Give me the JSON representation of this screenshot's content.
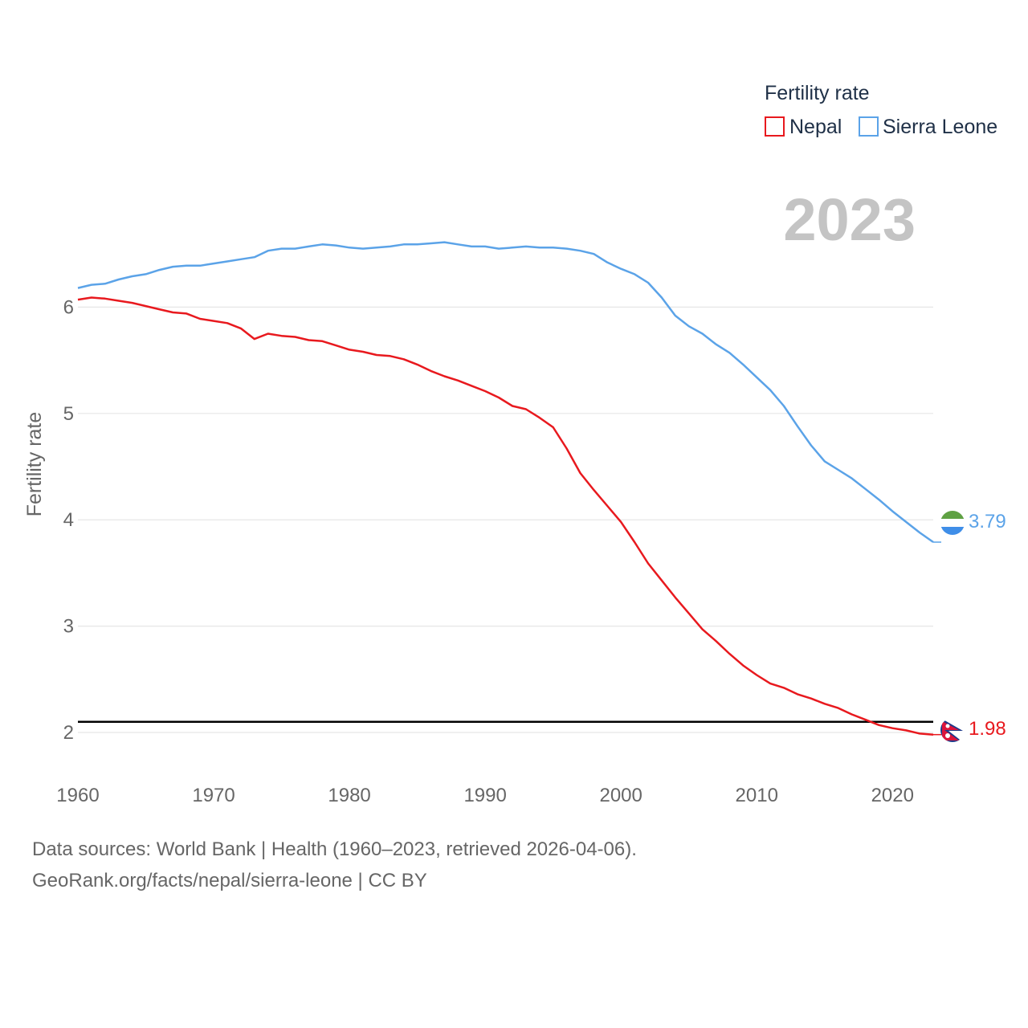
{
  "chart_data": {
    "type": "line",
    "legend_title": "Fertility rate",
    "ylabel": "Fertility rate",
    "xlabel": "",
    "year_label": "2023",
    "xlim": [
      1960,
      2023
    ],
    "ylim": [
      1.6,
      7.0
    ],
    "x_ticks": [
      "1960",
      "1970",
      "1980",
      "1990",
      "2000",
      "2010",
      "2020"
    ],
    "y_ticks": [
      "2",
      "3",
      "4",
      "5",
      "6"
    ],
    "reference_line": 2.1,
    "x": [
      1960,
      1961,
      1962,
      1963,
      1964,
      1965,
      1966,
      1967,
      1968,
      1969,
      1970,
      1971,
      1972,
      1973,
      1974,
      1975,
      1976,
      1977,
      1978,
      1979,
      1980,
      1981,
      1982,
      1983,
      1984,
      1985,
      1986,
      1987,
      1988,
      1989,
      1990,
      1991,
      1992,
      1993,
      1994,
      1995,
      1996,
      1997,
      1998,
      1999,
      2000,
      2001,
      2002,
      2003,
      2004,
      2005,
      2006,
      2007,
      2008,
      2009,
      2010,
      2011,
      2012,
      2013,
      2014,
      2015,
      2016,
      2017,
      2018,
      2019,
      2020,
      2021,
      2022,
      2023
    ],
    "series": [
      {
        "name": "Nepal",
        "color": "#e8191e",
        "end_label": "1.98",
        "flag": "nepal-flag",
        "values": [
          6.07,
          6.09,
          6.08,
          6.06,
          6.04,
          6.01,
          5.98,
          5.95,
          5.94,
          5.89,
          5.87,
          5.85,
          5.8,
          5.7,
          5.75,
          5.73,
          5.72,
          5.69,
          5.68,
          5.64,
          5.6,
          5.58,
          5.55,
          5.54,
          5.51,
          5.46,
          5.4,
          5.35,
          5.31,
          5.26,
          5.21,
          5.15,
          5.07,
          5.04,
          4.96,
          4.87,
          4.67,
          4.44,
          4.28,
          4.13,
          3.98,
          3.79,
          3.59,
          3.43,
          3.27,
          3.12,
          2.97,
          2.86,
          2.74,
          2.63,
          2.54,
          2.46,
          2.42,
          2.36,
          2.32,
          2.27,
          2.23,
          2.17,
          2.12,
          2.07,
          2.04,
          2.02,
          1.99,
          1.98
        ]
      },
      {
        "name": "Sierra Leone",
        "color": "#5ba3e8",
        "end_label": "3.79",
        "flag": "sierra-leone-flag",
        "values": [
          6.18,
          6.21,
          6.22,
          6.26,
          6.29,
          6.31,
          6.35,
          6.38,
          6.39,
          6.39,
          6.41,
          6.43,
          6.45,
          6.47,
          6.53,
          6.55,
          6.55,
          6.57,
          6.59,
          6.58,
          6.56,
          6.55,
          6.56,
          6.57,
          6.59,
          6.59,
          6.6,
          6.61,
          6.59,
          6.57,
          6.57,
          6.55,
          6.56,
          6.57,
          6.56,
          6.56,
          6.55,
          6.53,
          6.5,
          6.42,
          6.36,
          6.31,
          6.23,
          6.09,
          5.92,
          5.82,
          5.75,
          5.65,
          5.57,
          5.46,
          5.34,
          5.22,
          5.07,
          4.88,
          4.7,
          4.55,
          4.47,
          4.39,
          4.29,
          4.19,
          4.08,
          3.98,
          3.88,
          3.79
        ]
      }
    ]
  },
  "footer": {
    "source_line": "Data sources: World Bank | Health (1960–2023, retrieved 2026-04-06).",
    "credit_line": "GeoRank.org/facts/nepal/sierra-leone | CC BY"
  }
}
